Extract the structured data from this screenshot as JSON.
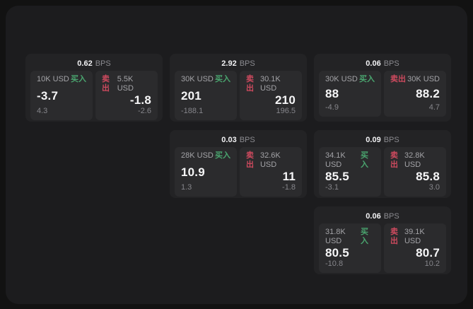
{
  "labels": {
    "buy": "买入",
    "sell": "卖出",
    "bps_unit": "BPS"
  },
  "colors": {
    "buy_green": "#4aa56f",
    "sell_red": "#cd4a5e",
    "page_bg": "#121212",
    "panel_bg": "#1c1c1e",
    "card_bg": "#232325",
    "tile_bg": "#2b2b2d"
  },
  "cards": [
    {
      "bps": "0.62",
      "buy": {
        "amount": "10K USD",
        "price": "-3.7",
        "sub": "4.3"
      },
      "sell": {
        "amount": "5.5K USD",
        "price": "-1.8",
        "sub": "-2.6"
      }
    },
    {
      "bps": "2.92",
      "buy": {
        "amount": "30K USD",
        "price": "201",
        "sub": "-188.1"
      },
      "sell": {
        "amount": "30.1K USD",
        "price": "210",
        "sub": "196.5"
      }
    },
    {
      "bps": "0.06",
      "buy": {
        "amount": "30K USD",
        "price": "88",
        "sub": "-4.9"
      },
      "sell": {
        "amount": "30K USD",
        "price": "88.2",
        "sub": "4.7"
      }
    },
    {
      "bps": "0.03",
      "buy": {
        "amount": "28K USD",
        "price": "10.9",
        "sub": "1.3"
      },
      "sell": {
        "amount": "32.6K USD",
        "price": "11",
        "sub": "-1.8"
      }
    },
    {
      "bps": "0.09",
      "buy": {
        "amount": "34.1K USD",
        "price": "85.5",
        "sub": "-3.1"
      },
      "sell": {
        "amount": "32.8K USD",
        "price": "85.8",
        "sub": "3.0"
      }
    },
    {
      "bps": "0.06",
      "buy": {
        "amount": "31.8K USD",
        "price": "80.5",
        "sub": "-10.8"
      },
      "sell": {
        "amount": "39.1K USD",
        "price": "80.7",
        "sub": "10.2"
      }
    }
  ]
}
